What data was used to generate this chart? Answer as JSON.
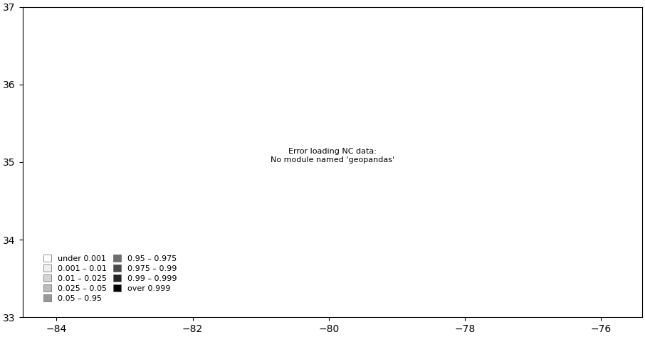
{
  "xlim": [
    -84.5,
    -75.4
  ],
  "ylim": [
    33.7,
    36.6
  ],
  "xlabel_ticks": [
    -84,
    -82,
    -80,
    -78,
    -76
  ],
  "ylabel_ticks": [
    33,
    34,
    35,
    36,
    37
  ],
  "legend_labels": [
    "under 0.001",
    "0.001 – 0.01",
    "0.01 – 0.025",
    "0.025 – 0.05",
    "0.05 – 0.95",
    "0.95 – 0.975",
    "0.975 – 0.99",
    "0.99 – 0.999",
    "over 0.999"
  ],
  "legend_colors": [
    "#FFFFFF",
    "#EEEEEE",
    "#D4D4D4",
    "#BBBBBB",
    "#999999",
    "#6E6E6E",
    "#4A4A4A",
    "#252525",
    "#000000"
  ],
  "background_color": "#FFFFFF",
  "edge_color": "#666666",
  "edge_linewidth": 0.4,
  "bins": [
    0.0,
    0.001,
    0.01,
    0.025,
    0.05,
    0.95,
    0.975,
    0.99,
    0.999,
    1.001
  ]
}
